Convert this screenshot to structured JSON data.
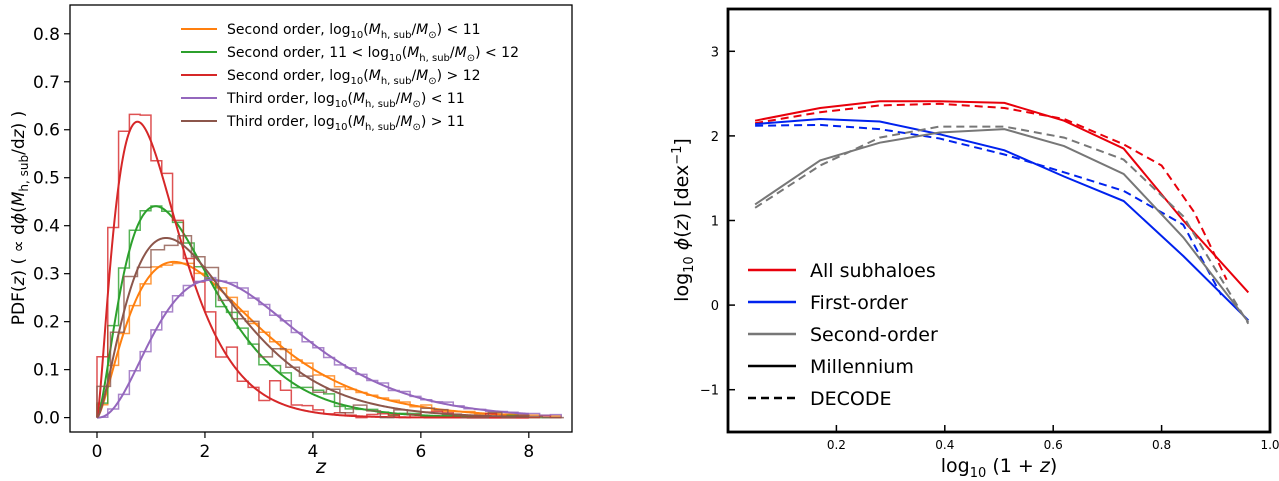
{
  "chart_data": [
    {
      "type": "line",
      "xlabel": "z",
      "ylabel": "PDF(z)  ( ∝ dϕ(M_h,sub/dz) )",
      "xlim": [
        -0.5,
        8.8
      ],
      "ylim": [
        -0.03,
        0.86
      ],
      "xticks": [
        0,
        2,
        4,
        6,
        8
      ],
      "yticks": [
        0.0,
        0.1,
        0.2,
        0.3,
        0.4,
        0.5,
        0.6,
        0.7,
        0.8
      ],
      "grid": false,
      "legend_position": "upper-right",
      "series": [
        {
          "name": "Second order, log10(Mh,sub/M⊙) < 11",
          "label_parts": [
            "Second order, log",
            "10",
            "(",
            "M",
            "h, sub",
            "/",
            "M",
            "⊙",
            ") < 11"
          ],
          "color": "#ff7f0e",
          "curve_shape": 2.5,
          "curve_scale": 0.95,
          "hist_step": 0.2,
          "hist_noise": 0.008,
          "seed": 11
        },
        {
          "name": "Second order, 11 < log10(Mh,sub/M⊙) < 12",
          "label_parts": [
            "Second order, 11 < log",
            "10",
            "(",
            "M",
            "h, sub",
            "/",
            "M",
            "⊙",
            ") < 12"
          ],
          "color": "#2ca02c",
          "curve_shape": 2.6,
          "curve_scale": 0.68,
          "hist_step": 0.2,
          "hist_noise": 0.015,
          "seed": 23
        },
        {
          "name": "Second order, log10(Mh,sub/M⊙) > 12",
          "label_parts": [
            "Second order, log",
            "10",
            "(",
            "M",
            "h, sub",
            "/",
            "M",
            "⊙",
            ") > 12"
          ],
          "color": "#d62728",
          "curve_shape": 2.5,
          "curve_scale": 0.5,
          "hist_step": 0.2,
          "hist_noise": 0.045,
          "seed": 37
        },
        {
          "name": "Third order, log10(Mh,sub/M⊙) < 11",
          "label_parts": [
            "Third order, log",
            "10",
            "(",
            "M",
            "h, sub",
            "/",
            "M",
            "⊙",
            ") < 11"
          ],
          "color": "#9467bd",
          "curve_shape": 3.5,
          "curve_scale": 0.85,
          "hist_step": 0.2,
          "hist_noise": 0.005,
          "seed": 51
        },
        {
          "name": "Third order, log10(Mh,sub/M⊙) > 11",
          "label_parts": [
            "Third order, log",
            "10",
            "(",
            "M",
            "h, sub",
            "/",
            "M",
            "⊙",
            ") > 11"
          ],
          "color": "#8c564b",
          "curve_shape": 2.6,
          "curve_scale": 0.8,
          "hist_step": 0.25,
          "hist_noise": 0.035,
          "seed": 67
        }
      ]
    },
    {
      "type": "line",
      "xlabel": "log10 (1 + z)",
      "ylabel": "log10 ϕ(z) [dex⁻¹]",
      "xlim": [
        0.0,
        1.0
      ],
      "ylim": [
        -1.5,
        3.5
      ],
      "xticks": [
        0.2,
        0.4,
        0.6,
        0.8,
        1.0
      ],
      "xtick_labels": [
        "0.2",
        "0.4",
        "0.6",
        "0.8",
        "1.0"
      ],
      "yticks": [
        -1,
        0,
        1,
        2,
        3
      ],
      "ytick_labels": [
        "−1",
        "0",
        "1",
        "2",
        "3"
      ],
      "grid": false,
      "legend_position": "lower-left",
      "series": [
        {
          "name": "All subhaloes",
          "color": "#e8000b",
          "style": "solid",
          "x": [
            0.05,
            0.17,
            0.28,
            0.39,
            0.51,
            0.62,
            0.73,
            0.84,
            0.96
          ],
          "y": [
            2.18,
            2.33,
            2.41,
            2.41,
            2.39,
            2.18,
            1.85,
            1.0,
            0.15
          ]
        },
        {
          "name": "All subhaloes (DECODE)",
          "color": "#e8000b",
          "style": "dashed",
          "x": [
            0.05,
            0.17,
            0.28,
            0.39,
            0.51,
            0.62,
            0.73,
            0.8,
            0.86,
            0.92
          ],
          "y": [
            2.15,
            2.28,
            2.36,
            2.38,
            2.33,
            2.2,
            1.9,
            1.65,
            1.1,
            0.3
          ]
        },
        {
          "name": "First-order",
          "color": "#0022ee",
          "style": "solid",
          "x": [
            0.05,
            0.17,
            0.28,
            0.39,
            0.51,
            0.62,
            0.73,
            0.84,
            0.96
          ],
          "y": [
            2.14,
            2.2,
            2.17,
            2.02,
            1.83,
            1.52,
            1.23,
            0.58,
            -0.18
          ]
        },
        {
          "name": "First-order (DECODE)",
          "color": "#0022ee",
          "style": "dashed",
          "x": [
            0.05,
            0.17,
            0.28,
            0.39,
            0.51,
            0.62,
            0.73,
            0.84,
            0.91
          ],
          "y": [
            2.12,
            2.13,
            2.08,
            1.97,
            1.78,
            1.57,
            1.35,
            0.95,
            0.12
          ]
        },
        {
          "name": "Second-order",
          "color": "#777777",
          "style": "solid",
          "x": [
            0.05,
            0.17,
            0.28,
            0.39,
            0.51,
            0.62,
            0.73,
            0.84,
            0.96
          ],
          "y": [
            1.19,
            1.71,
            1.92,
            2.04,
            2.08,
            1.88,
            1.55,
            0.8,
            -0.2
          ]
        },
        {
          "name": "Second-order (DECODE)",
          "color": "#777777",
          "style": "dashed",
          "x": [
            0.05,
            0.17,
            0.28,
            0.39,
            0.51,
            0.62,
            0.73,
            0.84,
            0.96
          ],
          "y": [
            1.15,
            1.65,
            1.98,
            2.11,
            2.11,
            1.98,
            1.72,
            1.05,
            -0.22
          ]
        }
      ],
      "legend": [
        {
          "label": "All subhaloes",
          "color": "#e8000b",
          "style": "solid"
        },
        {
          "label": "First-order",
          "color": "#0022ee",
          "style": "solid"
        },
        {
          "label": "Second-order",
          "color": "#777777",
          "style": "solid"
        },
        {
          "label": "Millennium",
          "color": "#000000",
          "style": "solid"
        },
        {
          "label": "DECODE",
          "color": "#000000",
          "style": "dashed"
        }
      ]
    }
  ]
}
